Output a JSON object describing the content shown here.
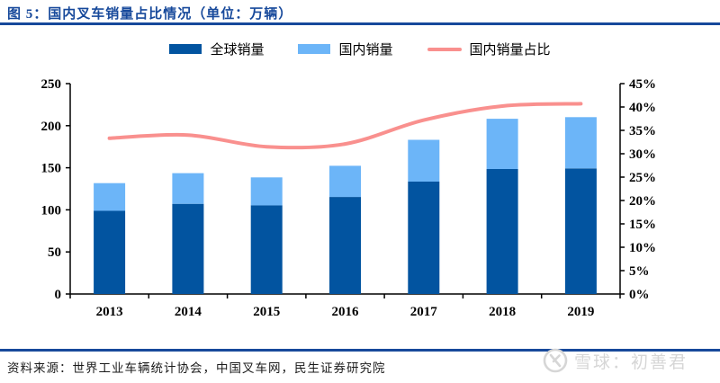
{
  "figure": {
    "title": "图 5：国内叉车销量占比情况（单位：万辆）",
    "source": "资料来源：世界工业车辆统计协会，中国叉车网，民生证券研究院"
  },
  "watermark": {
    "logo": "xueqiu-logo",
    "text": "雪球：初善君"
  },
  "colors": {
    "accent_blue": "#17499B",
    "bar_dark_blue": "#0254A0",
    "bar_light_blue": "#6CB5F8",
    "line_pink": "#F9908E",
    "axis_black": "#000000",
    "watermark_gray": "#D6D6D6"
  },
  "chart_data": {
    "type": "bar",
    "subtype": "stacked-bars-with-line",
    "title": "国内叉车销量占比情况（单位：万辆）",
    "categories": [
      "2013",
      "2014",
      "2015",
      "2016",
      "2017",
      "2018",
      "2019"
    ],
    "series": [
      {
        "name": "全球销量",
        "type": "bar",
        "axis": "left",
        "color": "#0254A0",
        "values": [
          98.8,
          107.2,
          105.4,
          115.3,
          133.5,
          148.5,
          149.3
        ]
      },
      {
        "name": "国内销量",
        "type": "bar",
        "axis": "left",
        "color": "#6CB5F8",
        "values": [
          32.9,
          36.4,
          33.2,
          37.0,
          49.7,
          59.7,
          60.8
        ]
      },
      {
        "name": "国内销量占比",
        "type": "line",
        "axis": "right",
        "color": "#F9908E",
        "values": [
          33.3,
          34.0,
          31.5,
          32.1,
          37.2,
          40.2,
          40.7
        ]
      }
    ],
    "stacked": true,
    "grid": false,
    "legend_position": "top",
    "left_axis": {
      "min": 0,
      "max": 250,
      "tick_values": [
        0,
        50,
        100,
        150,
        200,
        250
      ],
      "tick_labels": [
        "0",
        "50",
        "100",
        "150",
        "200",
        "250"
      ]
    },
    "right_axis": {
      "min": 0,
      "max": 45,
      "unit": "%",
      "tick_values": [
        0,
        5,
        10,
        15,
        20,
        25,
        30,
        35,
        40,
        45
      ],
      "tick_labels": [
        "0%",
        "5%",
        "10%",
        "15%",
        "20%",
        "25%",
        "30%",
        "35%",
        "40%",
        "45%"
      ]
    }
  }
}
